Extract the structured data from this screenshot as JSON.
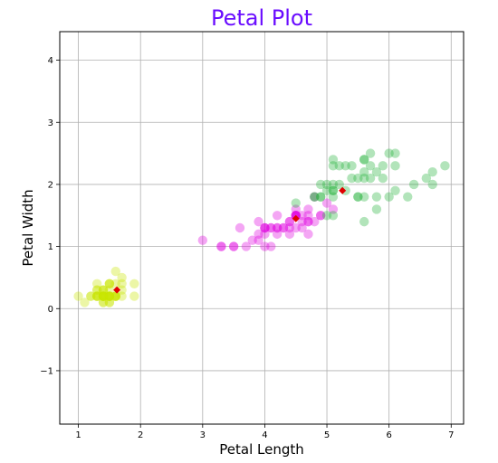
{
  "chart_data": {
    "type": "scatter",
    "title": "Petal Plot",
    "xlabel": "Petal Length",
    "ylabel": "Petal Width",
    "xlim": [
      0.7,
      7.2
    ],
    "ylim": [
      -1.86,
      4.46
    ],
    "xticks": [
      1,
      2,
      3,
      4,
      5,
      6,
      7
    ],
    "yticks": [
      -1,
      0,
      1,
      2,
      3,
      4
    ],
    "ytick_labels": [
      "−1",
      "0",
      "1",
      "2",
      "3",
      "4"
    ],
    "grid": true,
    "series": [
      {
        "color": "#c8e600",
        "points": [
          [
            1.4,
            0.2
          ],
          [
            1.4,
            0.2
          ],
          [
            1.3,
            0.2
          ],
          [
            1.5,
            0.2
          ],
          [
            1.4,
            0.2
          ],
          [
            1.7,
            0.4
          ],
          [
            1.4,
            0.3
          ],
          [
            1.5,
            0.2
          ],
          [
            1.4,
            0.2
          ],
          [
            1.5,
            0.1
          ],
          [
            1.5,
            0.2
          ],
          [
            1.6,
            0.2
          ],
          [
            1.4,
            0.1
          ],
          [
            1.1,
            0.1
          ],
          [
            1.2,
            0.2
          ],
          [
            1.5,
            0.4
          ],
          [
            1.3,
            0.4
          ],
          [
            1.4,
            0.3
          ],
          [
            1.7,
            0.3
          ],
          [
            1.5,
            0.3
          ],
          [
            1.7,
            0.2
          ],
          [
            1.5,
            0.4
          ],
          [
            1.0,
            0.2
          ],
          [
            1.7,
            0.5
          ],
          [
            1.9,
            0.2
          ],
          [
            1.6,
            0.2
          ],
          [
            1.6,
            0.4
          ],
          [
            1.5,
            0.2
          ],
          [
            1.4,
            0.2
          ],
          [
            1.6,
            0.2
          ],
          [
            1.6,
            0.2
          ],
          [
            1.5,
            0.4
          ],
          [
            1.5,
            0.1
          ],
          [
            1.4,
            0.2
          ],
          [
            1.5,
            0.2
          ],
          [
            1.2,
            0.2
          ],
          [
            1.3,
            0.2
          ],
          [
            1.4,
            0.1
          ],
          [
            1.3,
            0.2
          ],
          [
            1.5,
            0.2
          ],
          [
            1.3,
            0.3
          ],
          [
            1.3,
            0.3
          ],
          [
            1.3,
            0.2
          ],
          [
            1.6,
            0.6
          ],
          [
            1.9,
            0.4
          ],
          [
            1.4,
            0.3
          ],
          [
            1.6,
            0.2
          ],
          [
            1.4,
            0.2
          ],
          [
            1.5,
            0.2
          ],
          [
            1.4,
            0.2
          ]
        ]
      },
      {
        "color": "#e000e0",
        "points": [
          [
            4.7,
            1.4
          ],
          [
            4.5,
            1.5
          ],
          [
            4.9,
            1.5
          ],
          [
            4.0,
            1.3
          ],
          [
            4.6,
            1.5
          ],
          [
            4.5,
            1.3
          ],
          [
            4.7,
            1.6
          ],
          [
            3.3,
            1.0
          ],
          [
            4.6,
            1.3
          ],
          [
            3.9,
            1.4
          ],
          [
            3.5,
            1.0
          ],
          [
            4.2,
            1.5
          ],
          [
            4.0,
            1.0
          ],
          [
            4.7,
            1.4
          ],
          [
            3.6,
            1.3
          ],
          [
            4.4,
            1.4
          ],
          [
            4.5,
            1.5
          ],
          [
            4.1,
            1.0
          ],
          [
            4.5,
            1.5
          ],
          [
            3.9,
            1.1
          ],
          [
            4.8,
            1.8
          ],
          [
            4.0,
            1.3
          ],
          [
            4.9,
            1.5
          ],
          [
            4.7,
            1.2
          ],
          [
            4.3,
            1.3
          ],
          [
            4.4,
            1.4
          ],
          [
            4.8,
            1.4
          ],
          [
            5.0,
            1.7
          ],
          [
            4.5,
            1.5
          ],
          [
            3.5,
            1.0
          ],
          [
            3.8,
            1.1
          ],
          [
            3.7,
            1.0
          ],
          [
            3.9,
            1.2
          ],
          [
            5.1,
            1.6
          ],
          [
            4.5,
            1.5
          ],
          [
            4.5,
            1.6
          ],
          [
            4.7,
            1.5
          ],
          [
            4.4,
            1.3
          ],
          [
            4.1,
            1.3
          ],
          [
            4.0,
            1.3
          ],
          [
            4.4,
            1.2
          ],
          [
            4.6,
            1.4
          ],
          [
            4.0,
            1.2
          ],
          [
            3.3,
            1.0
          ],
          [
            4.2,
            1.3
          ],
          [
            4.2,
            1.2
          ],
          [
            4.2,
            1.3
          ],
          [
            4.3,
            1.3
          ],
          [
            3.0,
            1.1
          ],
          [
            4.1,
            1.3
          ]
        ]
      },
      {
        "color": "#22b33a",
        "points": [
          [
            6.0,
            2.5
          ],
          [
            5.1,
            1.9
          ],
          [
            5.9,
            2.1
          ],
          [
            5.6,
            1.8
          ],
          [
            5.8,
            2.2
          ],
          [
            6.6,
            2.1
          ],
          [
            4.5,
            1.7
          ],
          [
            6.3,
            1.8
          ],
          [
            5.8,
            1.8
          ],
          [
            6.1,
            2.5
          ],
          [
            5.1,
            2.0
          ],
          [
            5.3,
            1.9
          ],
          [
            5.5,
            2.1
          ],
          [
            5.0,
            2.0
          ],
          [
            5.1,
            2.4
          ],
          [
            5.3,
            2.3
          ],
          [
            5.5,
            1.8
          ],
          [
            6.7,
            2.2
          ],
          [
            6.9,
            2.3
          ],
          [
            5.0,
            1.5
          ],
          [
            5.7,
            2.3
          ],
          [
            4.9,
            2.0
          ],
          [
            6.7,
            2.0
          ],
          [
            4.9,
            1.8
          ],
          [
            5.7,
            2.1
          ],
          [
            6.0,
            1.8
          ],
          [
            4.8,
            1.8
          ],
          [
            4.9,
            1.8
          ],
          [
            5.6,
            2.1
          ],
          [
            5.8,
            1.6
          ],
          [
            6.1,
            1.9
          ],
          [
            6.4,
            2.0
          ],
          [
            5.6,
            2.2
          ],
          [
            5.1,
            1.5
          ],
          [
            5.6,
            1.4
          ],
          [
            6.1,
            2.3
          ],
          [
            5.6,
            2.4
          ],
          [
            5.5,
            1.8
          ],
          [
            4.8,
            1.8
          ],
          [
            5.4,
            2.1
          ],
          [
            5.6,
            2.4
          ],
          [
            5.1,
            2.3
          ],
          [
            5.1,
            1.9
          ],
          [
            5.9,
            2.3
          ],
          [
            5.7,
            2.5
          ],
          [
            5.2,
            2.3
          ],
          [
            5.0,
            1.9
          ],
          [
            5.2,
            2.0
          ],
          [
            5.4,
            2.3
          ],
          [
            5.1,
            1.8
          ]
        ]
      }
    ],
    "centroids": {
      "color": "#e00000",
      "points": [
        [
          1.62,
          0.3
        ],
        [
          4.5,
          1.45
        ],
        [
          5.25,
          1.9
        ]
      ]
    },
    "colors": {
      "title": "#6a0dff",
      "grid": "#b0b0b0"
    }
  }
}
